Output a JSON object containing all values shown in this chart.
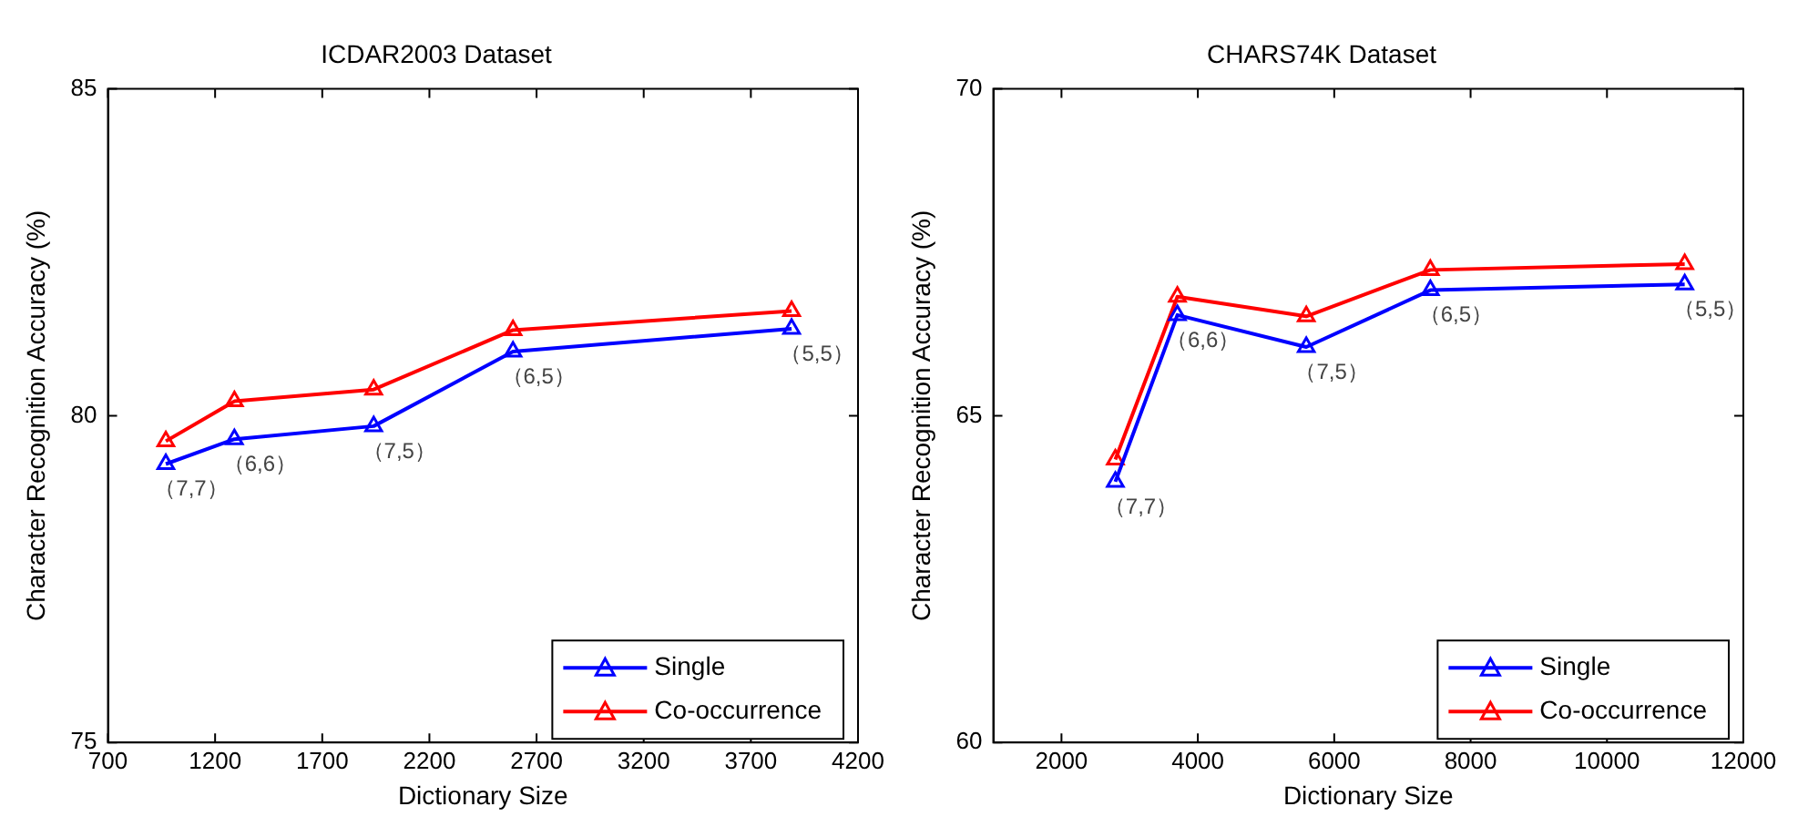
{
  "chart_data": [
    {
      "type": "line",
      "title": "ICDAR2003 Dataset",
      "xlabel": "Dictionary Size",
      "ylabel": "Character Recognition Accuracy (%)",
      "x": [
        970,
        1290,
        1940,
        2590,
        3890
      ],
      "series": [
        {
          "name": "Single",
          "color": "#0000ff",
          "values": [
            79.26,
            79.64,
            79.84,
            80.98,
            81.33
          ]
        },
        {
          "name": "Co-occurrence",
          "color": "#ff0000",
          "values": [
            79.61,
            80.22,
            80.4,
            81.31,
            81.6
          ]
        }
      ],
      "xlim": [
        700,
        4200
      ],
      "xticks": [
        700,
        1200,
        1700,
        2200,
        2700,
        3200,
        3700,
        4200
      ],
      "ylim": [
        75,
        85
      ],
      "yticks": [
        75,
        80,
        85
      ],
      "grid": false,
      "legend": "bottom right",
      "marker": "triangle",
      "line_style": "solid",
      "annotations": [
        {
          "text": "（7,7）",
          "x": 970,
          "y": 79.26
        },
        {
          "text": "（6,6）",
          "x": 1290,
          "y": 79.64
        },
        {
          "text": "（7,5）",
          "x": 1940,
          "y": 79.84
        },
        {
          "text": "（6,5）",
          "x": 2590,
          "y": 80.98
        },
        {
          "text": "（5,5）",
          "x": 3890,
          "y": 81.33
        }
      ]
    },
    {
      "type": "line",
      "title": "CHARS74K Dataset",
      "xlabel": "Dictionary Size",
      "ylabel": "Character Recognition Accuracy (%)",
      "x": [
        2790,
        3700,
        5590,
        7410,
        11140
      ],
      "series": [
        {
          "name": "Single",
          "color": "#0000ff",
          "values": [
            63.99,
            66.54,
            66.05,
            66.92,
            67.01
          ]
        },
        {
          "name": "Co-occurrence",
          "color": "#ff0000",
          "values": [
            64.33,
            66.82,
            66.52,
            67.23,
            67.32
          ]
        }
      ],
      "xlim": [
        1000,
        12000
      ],
      "xticks": [
        2000,
        4000,
        6000,
        8000,
        10000,
        12000
      ],
      "ylim": [
        60,
        70
      ],
      "yticks": [
        60,
        65,
        70
      ],
      "grid": false,
      "legend": "bottom right",
      "marker": "triangle",
      "line_style": "solid",
      "annotations": [
        {
          "text": "（7,7）",
          "x": 2790,
          "y": 63.99
        },
        {
          "text": "（6,6）",
          "x": 3700,
          "y": 66.54
        },
        {
          "text": "（7,5）",
          "x": 5590,
          "y": 66.05
        },
        {
          "text": "（6,5）",
          "x": 7410,
          "y": 66.92
        },
        {
          "text": "（5,5）",
          "x": 11140,
          "y": 67.01
        }
      ]
    }
  ]
}
